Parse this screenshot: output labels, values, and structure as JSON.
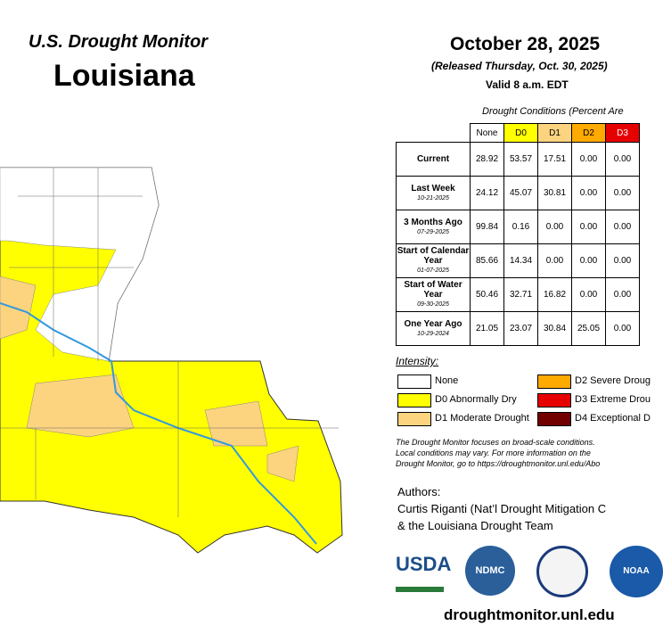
{
  "header": {
    "brand": "U.S. Drought Monitor",
    "state": "Louisiana",
    "date": "October 28, 2025",
    "released": "(Released Thursday, Oct. 30, 2025)",
    "valid": "Valid 8 a.m. EDT"
  },
  "table": {
    "caption": "Drought Conditions (Percent Are",
    "columns": [
      "None",
      "D0",
      "D1",
      "D2",
      "D3"
    ],
    "rows": [
      {
        "label": "Current",
        "date": null,
        "values": [
          "28.92",
          "53.57",
          "17.51",
          "0.00",
          "0.00"
        ]
      },
      {
        "label": "Last Week",
        "date": "10-21-2025",
        "values": [
          "24.12",
          "45.07",
          "30.81",
          "0.00",
          "0.00"
        ]
      },
      {
        "label": "3 Months Ago",
        "date": "07-29-2025",
        "values": [
          "99.84",
          "0.16",
          "0.00",
          "0.00",
          "0.00"
        ]
      },
      {
        "label": "Start of Calendar Year",
        "date": "01-07-2025",
        "values": [
          "85.66",
          "14.34",
          "0.00",
          "0.00",
          "0.00"
        ]
      },
      {
        "label": "Start of Water Year",
        "date": "09-30-2025",
        "values": [
          "50.46",
          "32.71",
          "16.82",
          "0.00",
          "0.00"
        ]
      },
      {
        "label": "One Year Ago",
        "date": "10-29-2024",
        "values": [
          "21.05",
          "23.07",
          "30.84",
          "25.05",
          "0.00"
        ]
      }
    ]
  },
  "legend": {
    "title": "Intensity:",
    "items": [
      {
        "label": "None",
        "color": "#ffffff"
      },
      {
        "label": "D0 Abnormally Dry",
        "color": "#ffff00"
      },
      {
        "label": "D1 Moderate Drought",
        "color": "#fcd37f"
      },
      {
        "label": "D2 Severe Droug",
        "color": "#ffaa00"
      },
      {
        "label": "D3 Extreme Drou",
        "color": "#e60000"
      },
      {
        "label": "D4 Exceptional D",
        "color": "#730000"
      }
    ]
  },
  "note": [
    "The Drought Monitor focuses on broad-scale conditions.",
    "Local conditions may vary. For more information on the",
    "Drought Monitor, go to https://droughtmonitor.unl.edu/Abo"
  ],
  "authors": [
    "Authors:",
    "Curtis Riganti (Nat’l Drought Mitigation C",
    "& the Louisiana Drought Team"
  ],
  "logos": [
    "USDA",
    "NDMC",
    "NOAA"
  ],
  "footer": "droughtmonitor.unl.edu"
}
